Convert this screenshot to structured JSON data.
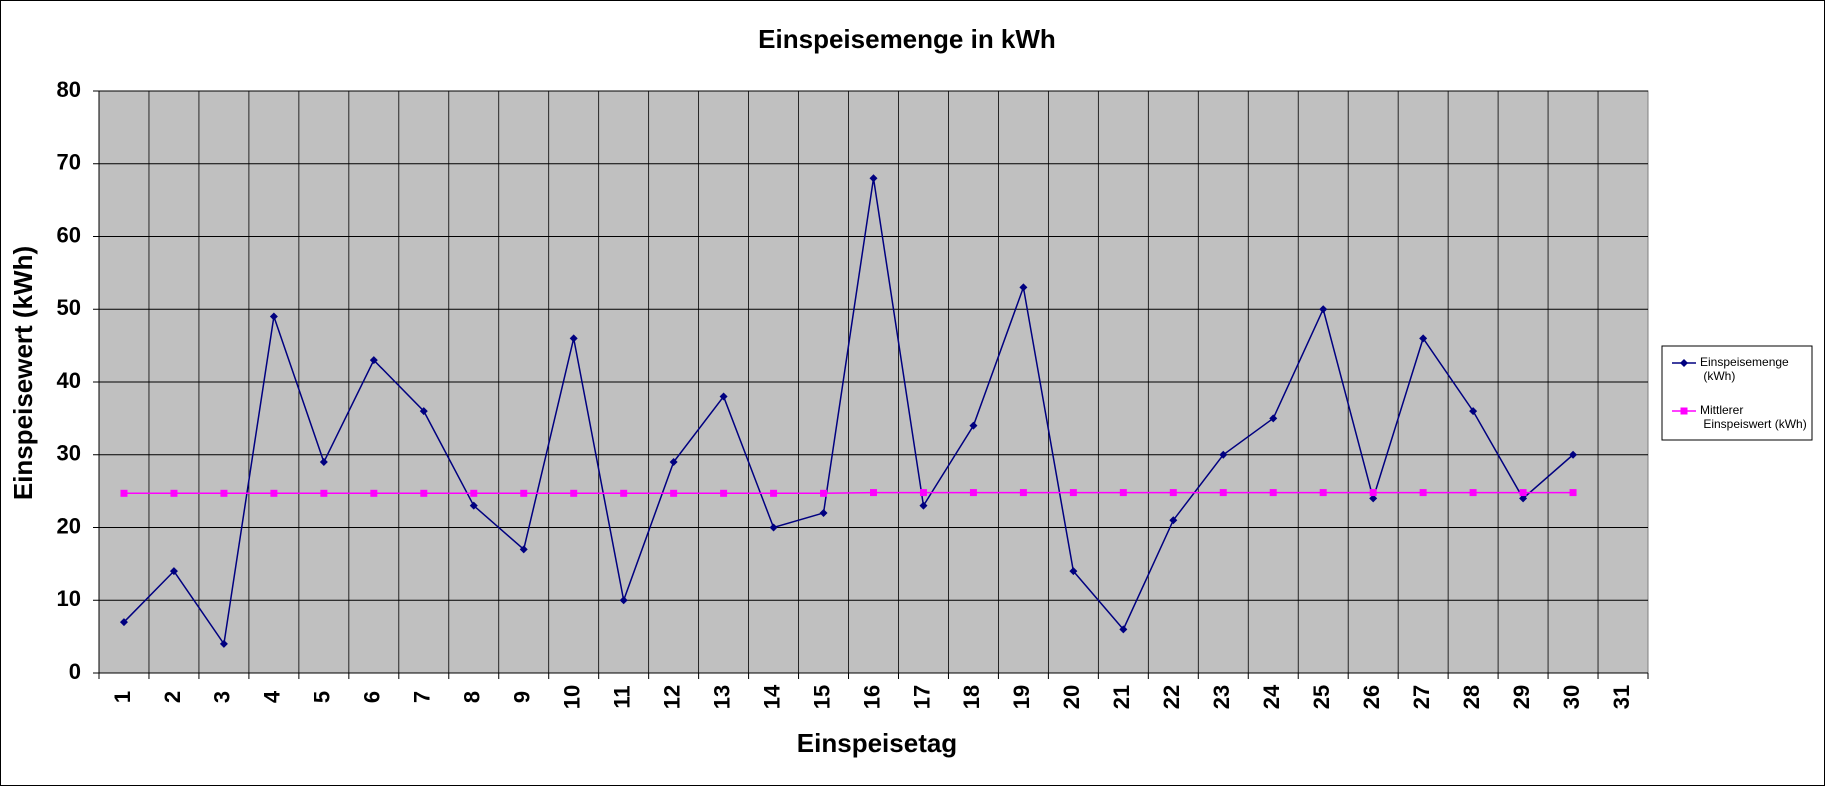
{
  "chart_data": {
    "type": "line",
    "title": "Einspeisemenge in kWh",
    "x_label": "Einspeisetag",
    "y_label": "Einspeisewert  (kWh)",
    "categories": [
      "1",
      "2",
      "3",
      "4",
      "5",
      "6",
      "7",
      "8",
      "9",
      "10",
      "11",
      "12",
      "13",
      "14",
      "15",
      "16",
      "17",
      "18",
      "19",
      "20",
      "21",
      "22",
      "23",
      "24",
      "25",
      "26",
      "27",
      "28",
      "29",
      "30",
      "31"
    ],
    "series": [
      {
        "name": "Einspeisemenge (kWh)",
        "color": "#000080",
        "marker": "diamond",
        "values": [
          7,
          14,
          4,
          49,
          29,
          43,
          36,
          23,
          17,
          46,
          10,
          29,
          38,
          20,
          22,
          68,
          23,
          34,
          53,
          14,
          6,
          21,
          30,
          35,
          50,
          24,
          46,
          36,
          24,
          30,
          null
        ]
      },
      {
        "name": "Mittlerer Einspeiswert (kWh)",
        "color": "#ff00ff",
        "marker": "square",
        "values": [
          24.7,
          24.7,
          24.7,
          24.7,
          24.7,
          24.7,
          24.7,
          24.7,
          24.7,
          24.7,
          24.7,
          24.7,
          24.7,
          24.7,
          24.7,
          24.8,
          24.8,
          24.8,
          24.8,
          24.8,
          24.8,
          24.8,
          24.8,
          24.8,
          24.8,
          24.8,
          24.8,
          24.8,
          24.8,
          24.8,
          null
        ]
      }
    ],
    "ylim": [
      0,
      80
    ],
    "yticks": [
      0,
      10,
      20,
      30,
      40,
      50,
      60,
      70,
      80
    ],
    "grid": true,
    "plot_background": "#c0c0c0",
    "legend": "right"
  }
}
